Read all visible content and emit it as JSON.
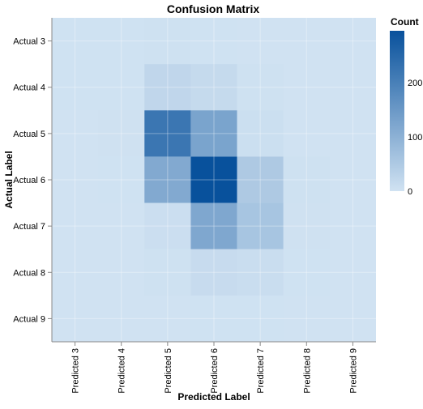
{
  "chart_data": {
    "type": "heatmap",
    "title": "Confusion Matrix",
    "xlabel": "Predicted Label",
    "ylabel": "Actual Label",
    "x_categories": [
      "Predicted 3",
      "Predicted 4",
      "Predicted 5",
      "Predicted 6",
      "Predicted 7",
      "Predicted 8",
      "Predicted 9"
    ],
    "y_categories": [
      "Actual 3",
      "Actual 4",
      "Actual 5",
      "Actual 6",
      "Actual 7",
      "Actual 8",
      "Actual 9"
    ],
    "values": [
      [
        1,
        1,
        3,
        1,
        0,
        0,
        0
      ],
      [
        1,
        1,
        24,
        16,
        3,
        0,
        0
      ],
      [
        0,
        2,
        220,
        127,
        7,
        0,
        0
      ],
      [
        0,
        1,
        115,
        295,
        50,
        3,
        0
      ],
      [
        0,
        0,
        8,
        120,
        60,
        2,
        0
      ],
      [
        0,
        0,
        3,
        14,
        10,
        1,
        0
      ],
      [
        0,
        0,
        0,
        1,
        1,
        0,
        0
      ]
    ],
    "colorbar": {
      "title": "Count",
      "ticks": [
        0,
        100,
        200
      ],
      "range": [
        0,
        295
      ],
      "color_low": "#d0e2f2",
      "color_high": "#08519c"
    },
    "grid": true,
    "background": "#d0e2f2"
  }
}
